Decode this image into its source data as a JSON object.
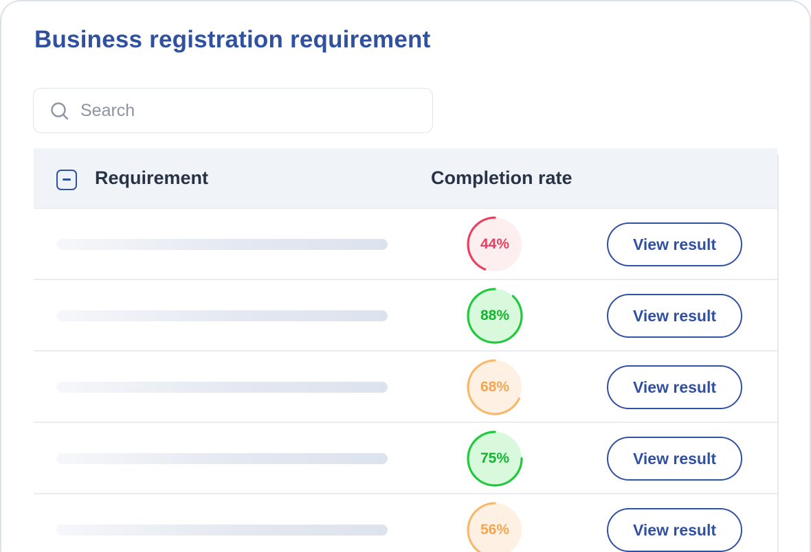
{
  "page": {
    "title": "Business registration requirement"
  },
  "search": {
    "placeholder": "Search",
    "value": "",
    "icon": "search-icon"
  },
  "table": {
    "columns": {
      "requirement": "Requirement",
      "completion_rate": "Completion rate"
    },
    "header_checkbox_state": "indeterminate",
    "rows": [
      {
        "requirement": "",
        "rate": 44,
        "rate_label": "44%",
        "status": "low",
        "action_label": "View result"
      },
      {
        "requirement": "",
        "rate": 88,
        "rate_label": "88%",
        "status": "high",
        "action_label": "View result"
      },
      {
        "requirement": "",
        "rate": 68,
        "rate_label": "68%",
        "status": "medium",
        "action_label": "View result"
      },
      {
        "requirement": "",
        "rate": 75,
        "rate_label": "75%",
        "status": "high",
        "action_label": "View result"
      },
      {
        "requirement": "",
        "rate": 56,
        "rate_label": "56%",
        "status": "medium",
        "action_label": "View result"
      }
    ]
  },
  "colors": {
    "accent": "#3050a0",
    "status": {
      "low": {
        "stroke": "#e8415f",
        "fill": "#fdeef0",
        "text": "#e8415f"
      },
      "medium": {
        "stroke": "#f7b86a",
        "fill": "#fef1e4",
        "text": "#f2a651"
      },
      "high": {
        "stroke": "#1ec93b",
        "fill": "#d8f9dc",
        "text": "#13b52f"
      }
    }
  }
}
